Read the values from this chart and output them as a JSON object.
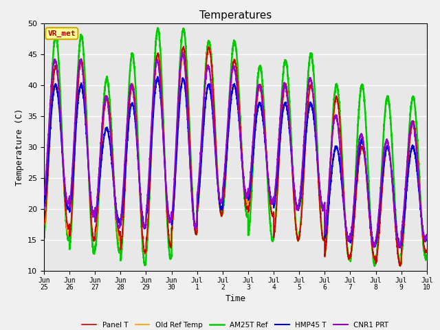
{
  "title": "Temperatures",
  "xlabel": "Time",
  "ylabel": "Temperature (C)",
  "ylim": [
    10,
    50
  ],
  "plot_bg_color": "#e8e8e8",
  "fig_bg_color": "#f0f0f0",
  "annotation_text": "VR_met",
  "annotation_color": "#aa0000",
  "annotation_bg": "#ffff99",
  "annotation_border": "#ccaa00",
  "series": [
    {
      "label": "Panel T",
      "color": "#cc0000",
      "lw": 1.2,
      "zorder": 3
    },
    {
      "label": "Old Ref Temp",
      "color": "#ff9900",
      "lw": 1.2,
      "zorder": 2
    },
    {
      "label": "AM25T Ref",
      "color": "#00cc00",
      "lw": 1.8,
      "zorder": 1
    },
    {
      "label": "HMP45 T",
      "color": "#0000dd",
      "lw": 1.5,
      "zorder": 4
    },
    {
      "label": "CNR1 PRT",
      "color": "#9900cc",
      "lw": 1.5,
      "zorder": 4
    }
  ],
  "tick_labels": [
    "Jun\n25",
    "Jun\n26",
    "Jun\n27",
    "Jun\n28",
    "Jun\n29",
    "Jun\n30",
    "Jul\n1",
    "Jul\n2",
    "Jul\n3",
    "Jul\n4",
    "Jul\n5",
    "Jul\n6",
    "Jul\n7",
    "Jul\n8",
    "Jul\n9",
    "Jul\n10"
  ],
  "num_days": 15,
  "grid_color": "#ffffff",
  "yticks": [
    10,
    15,
    20,
    25,
    30,
    35,
    40,
    45,
    50
  ]
}
